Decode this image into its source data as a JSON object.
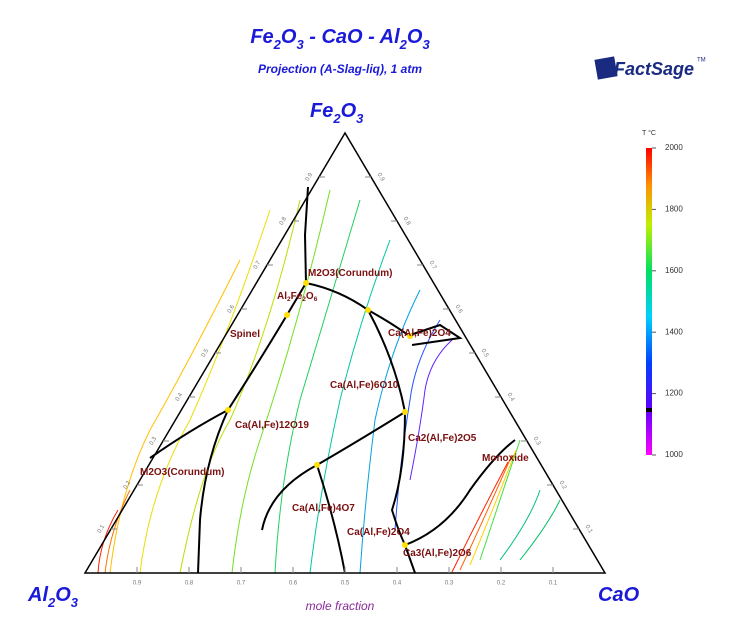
{
  "header": {
    "title_parts": [
      "Fe",
      "2",
      "O",
      "3",
      " - CaO - Al",
      "2",
      "O",
      "3"
    ],
    "subtitle": "Projection (A-Slag-liq), 1 atm",
    "logo": "FactSage",
    "logo_mark": "TM"
  },
  "corners": {
    "top": [
      "Fe",
      "2",
      "O",
      "3"
    ],
    "left": [
      "Al",
      "2",
      "O",
      "3"
    ],
    "right": [
      "CaO"
    ]
  },
  "axis_title": "mole fraction",
  "edge_ticks": {
    "bottom": [
      "0.9",
      "0.8",
      "0.7",
      "0.6",
      "0.5",
      "0.4",
      "0.3",
      "0.2",
      "0.1"
    ],
    "left": [
      "0.1",
      "0.2",
      "0.3",
      "0.4",
      "0.5",
      "0.6",
      "0.7",
      "0.8",
      "0.9"
    ],
    "right": [
      "0.9",
      "0.8",
      "0.7",
      "0.6",
      "0.5",
      "0.4",
      "0.3",
      "0.2",
      "0.1"
    ]
  },
  "phase_labels": [
    [
      "M2O3(Corundum)"
    ],
    [
      "Al",
      "2",
      "Fe",
      "2",
      "O",
      "6"
    ],
    [
      "Spinel"
    ],
    [
      "Ca(Al,Fe)2O4"
    ],
    [
      "Ca(Al,Fe)6O10"
    ],
    [
      "Ca(Al,Fe)12O19"
    ],
    [
      "Ca2(Al,Fe)2O5"
    ],
    [
      "M2O3(Corundum)"
    ],
    [
      "Monoxide"
    ],
    [
      "Ca(Al,Fe)4O7"
    ],
    [
      "Ca(Al,Fe)2O4"
    ],
    [
      "Ca3(Al,Fe)2O6"
    ]
  ],
  "colorbar": {
    "title": "T °C",
    "range": [
      1000,
      2000
    ],
    "ticks": [
      1000,
      1200,
      1400,
      1600,
      1800,
      2000
    ]
  }
}
